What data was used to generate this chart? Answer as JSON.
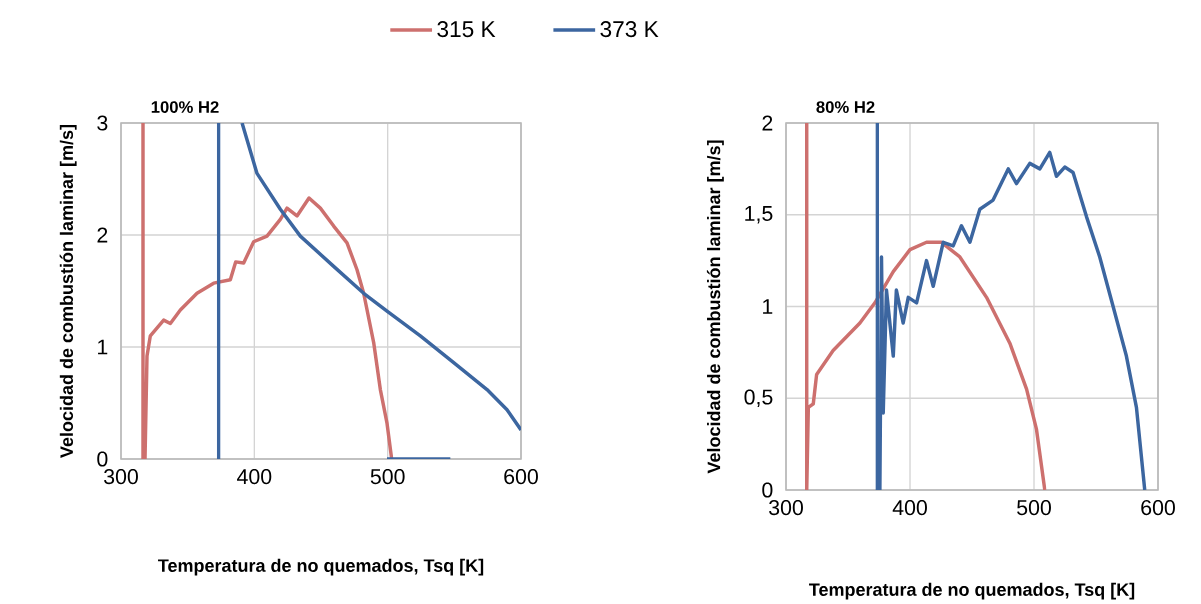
{
  "chart_data": [
    {
      "type": "line",
      "title": "100% H2",
      "xlabel": "Temperatura de no quemados, Tsq [K]",
      "ylabel": "Velocidad de combustión laminar [m/s]",
      "xlim": [
        300,
        600
      ],
      "ylim": [
        0,
        3
      ],
      "xticks": [
        300,
        400,
        500,
        600
      ],
      "yticks": [
        0,
        1,
        2,
        3
      ],
      "grid": true,
      "legend": "top",
      "series": [
        {
          "name": "315 K",
          "color": "#cd706e",
          "x": [
            316.5,
            316.5,
            318,
            319.5,
            322,
            332,
            337,
            344.5,
            357,
            369.5,
            382,
            386,
            392,
            399.5,
            409.5,
            419.5,
            424.5,
            432,
            441,
            449.5,
            459.5,
            469.5,
            477,
            482,
            489.5,
            494.5,
            499.5,
            503
          ],
          "values": [
            3,
            0,
            0,
            0.92,
            1.1,
            1.24,
            1.21,
            1.33,
            1.48,
            1.57,
            1.6,
            1.76,
            1.75,
            1.94,
            1.99,
            2.14,
            2.24,
            2.17,
            2.33,
            2.24,
            2.08,
            1.93,
            1.69,
            1.48,
            1.04,
            0.62,
            0.32,
            0
          ]
        },
        {
          "name": "373 K",
          "color": "#3c66a0",
          "x": [
            390.8,
            402,
            419.5,
            434.5,
            459.5,
            482,
            499.5,
            524.5,
            549.5,
            574.5,
            589.5,
            600
          ],
          "values": [
            3,
            2.55,
            2.23,
            1.99,
            1.72,
            1.48,
            1.32,
            1.1,
            0.86,
            0.62,
            0.44,
            0.26
          ]
        },
        {
          "color": "#3c66a0",
          "x": [
            373.2,
            373.2
          ],
          "values": [
            0,
            3
          ]
        },
        {
          "color": "#3c66a0",
          "x": [
            499.5,
            547
          ],
          "values": [
            0,
            0
          ]
        }
      ]
    },
    {
      "type": "line",
      "title": "80% H2",
      "xlabel": "Temperatura de no quemados, Tsq [K]",
      "ylabel": "Velocidad de combustión laminar [m/s]",
      "xlim": [
        300,
        600
      ],
      "ylim": [
        0,
        2
      ],
      "xticks": [
        300,
        400,
        500,
        600
      ],
      "yticks": [
        0,
        {
          "value": 0.5,
          "label": "0,5"
        },
        1,
        {
          "value": 1.5,
          "label": "1,5"
        },
        2
      ],
      "grid": true,
      "series": [
        {
          "color": "#cd706e",
          "x": [
            316.7,
            316.7,
            318,
            322,
            324.7,
            338,
            359.6,
            371.7,
            386.5,
            400,
            413.3,
            425.4,
            440.2,
            461.7,
            480.5,
            494,
            502,
            508.7
          ],
          "values": [
            2,
            0,
            0.45,
            0.47,
            0.63,
            0.76,
            0.91,
            1.02,
            1.19,
            1.31,
            1.35,
            1.35,
            1.27,
            1.05,
            0.8,
            0.55,
            0.33,
            0
          ]
        },
        {
          "color": "#3c66a0",
          "x": [
            373.6,
            373.6,
            375.7,
            377,
            378.4,
            381,
            386.5,
            389,
            394.5,
            398.6,
            405.3,
            413.3,
            418.7,
            426.8,
            434.8,
            441.5,
            448.3,
            456.3,
            467,
            479.2,
            485.9,
            496.6,
            504.7,
            512.7,
            518.1,
            524.8,
            531.5,
            542.3,
            553,
            563.8,
            574.5,
            582.6,
            589.3
          ],
          "values": [
            2,
            0,
            0,
            1.27,
            0.42,
            1.09,
            0.73,
            1.09,
            0.91,
            1.05,
            1.02,
            1.25,
            1.11,
            1.35,
            1.33,
            1.44,
            1.35,
            1.53,
            1.58,
            1.75,
            1.67,
            1.78,
            1.75,
            1.84,
            1.71,
            1.76,
            1.73,
            1.49,
            1.27,
            1,
            0.73,
            0.45,
            0
          ]
        }
      ]
    }
  ]
}
